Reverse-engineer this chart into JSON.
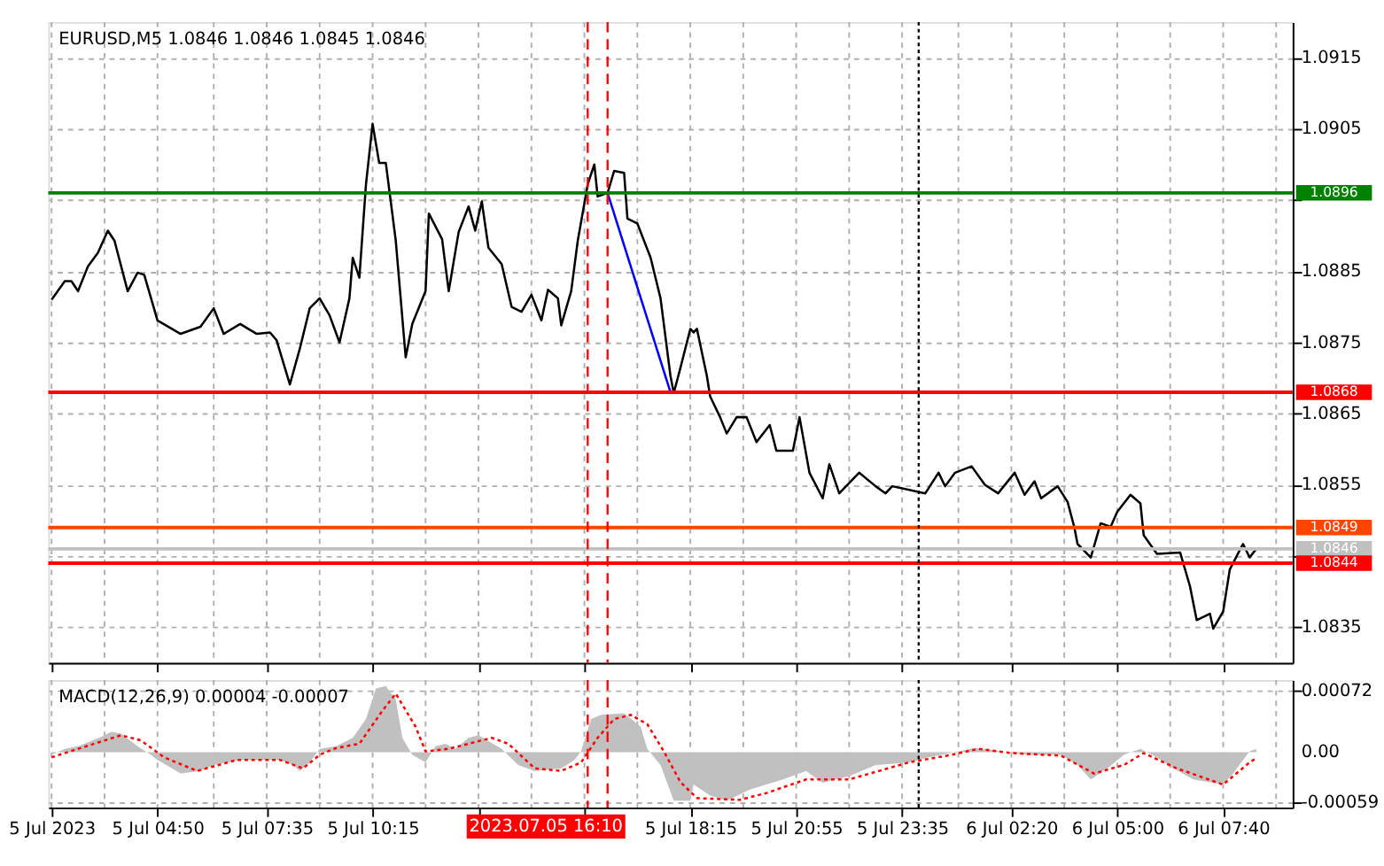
{
  "chart_data": [
    {
      "type": "line",
      "title": "EURUSD,M5  1.0846 1.0846 1.0845 1.0846",
      "tick_labels": "y",
      "grid": true,
      "xlim": [
        "2023-07-05T02:05",
        "2023-07-06T09:25"
      ],
      "xticks": [
        {
          "value": "2023-07-05T02:10",
          "label": null
        },
        {
          "value": "2023-07-05T03:30",
          "label": null
        },
        {
          "value": "2023-07-05T04:50",
          "label": null
        },
        {
          "value": "2023-07-05T06:15",
          "label": null
        },
        {
          "value": "2023-07-05T07:35",
          "label": null
        },
        {
          "value": "2023-07-05T08:55",
          "label": null
        },
        {
          "value": "2023-07-05T10:15",
          "label": null
        },
        {
          "value": "2023-07-05T11:35",
          "label": null
        },
        {
          "value": "2023-07-05T12:55",
          "label": null
        },
        {
          "value": "2023-07-05T14:15",
          "label": null
        },
        {
          "value": "2023-07-05T15:35",
          "label": null
        },
        {
          "value": "2023-07-05T16:55",
          "label": null
        },
        {
          "value": "2023-07-05T18:15",
          "label": null
        },
        {
          "value": "2023-07-05T19:35",
          "label": null
        },
        {
          "value": "2023-07-05T20:55",
          "label": null
        },
        {
          "value": "2023-07-05T22:15",
          "label": null
        },
        {
          "value": "2023-07-05T23:35",
          "label": null
        },
        {
          "value": "2023-07-06T01:00",
          "label": null
        },
        {
          "value": "2023-07-06T02:20",
          "label": null
        },
        {
          "value": "2023-07-06T03:40",
          "label": null
        },
        {
          "value": "2023-07-06T05:00",
          "label": null
        },
        {
          "value": "2023-07-06T06:20",
          "label": null
        },
        {
          "value": "2023-07-06T07:40",
          "label": null
        },
        {
          "value": "2023-07-06T09:00",
          "label": null
        }
      ],
      "ylim": [
        1.083,
        1.092
      ],
      "yticks": [
        1.0835,
        {
          "value": 1.0845,
          "label": null
        },
        1.0855,
        1.0865,
        1.0875,
        1.0885,
        {
          "value": 1.0895,
          "label": null
        },
        1.0905,
        1.0915
      ],
      "series": [
        {
          "color": "#000000",
          "x": [
            "2023-07-05T02:10",
            "2023-07-05T02:30",
            "2023-07-05T02:40",
            "2023-07-05T02:50",
            "2023-07-05T03:05",
            "2023-07-05T03:20",
            "2023-07-05T03:35",
            "2023-07-05T03:45",
            "2023-07-05T04:05",
            "2023-07-05T04:20",
            "2023-07-05T04:30",
            "2023-07-05T04:50",
            "2023-07-05T05:25",
            "2023-07-05T05:55",
            "2023-07-05T06:15",
            "2023-07-05T06:30",
            "2023-07-05T06:55",
            "2023-07-05T07:20",
            "2023-07-05T07:40",
            "2023-07-05T07:50",
            "2023-07-05T08:10",
            "2023-07-05T08:25",
            "2023-07-05T08:40",
            "2023-07-05T08:55",
            "2023-07-05T09:10",
            "2023-07-05T09:25",
            "2023-07-05T09:40",
            "2023-07-05T09:45",
            "2023-07-05T09:55",
            "2023-07-05T10:05",
            "2023-07-05T10:15",
            "2023-07-05T10:25",
            "2023-07-05T10:35",
            "2023-07-05T10:50",
            "2023-07-05T11:05",
            "2023-07-05T11:15",
            "2023-07-05T11:35",
            "2023-07-05T11:40",
            "2023-07-05T12:00",
            "2023-07-05T12:10",
            "2023-07-05T12:25",
            "2023-07-05T12:40",
            "2023-07-05T12:50",
            "2023-07-05T13:00",
            "2023-07-05T13:10",
            "2023-07-05T13:30",
            "2023-07-05T13:45",
            "2023-07-05T14:00",
            "2023-07-05T14:15",
            "2023-07-05T14:30",
            "2023-07-05T14:40",
            "2023-07-05T14:55",
            "2023-07-05T15:00",
            "2023-07-05T15:15",
            "2023-07-05T15:25",
            "2023-07-05T15:40",
            "2023-07-05T15:50",
            "2023-07-05T15:55",
            "2023-07-05T16:10",
            "2023-07-05T16:20",
            "2023-07-05T16:35",
            "2023-07-05T16:40",
            "2023-07-05T16:55",
            "2023-07-05T17:15",
            "2023-07-05T17:30",
            "2023-07-05T17:45",
            "2023-07-05T17:50",
            "2023-07-05T18:00",
            "2023-07-05T18:15",
            "2023-07-05T18:20",
            "2023-07-05T18:25",
            "2023-07-05T18:40",
            "2023-07-05T18:45",
            "2023-07-05T19:00",
            "2023-07-05T19:10",
            "2023-07-05T19:25",
            "2023-07-05T19:40",
            "2023-07-05T19:55",
            "2023-07-05T20:15",
            "2023-07-05T20:25",
            "2023-07-05T20:50",
            "2023-07-05T21:00",
            "2023-07-05T21:15",
            "2023-07-05T21:35",
            "2023-07-05T21:45",
            "2023-07-05T22:00",
            "2023-07-05T22:30",
            "2023-07-05T22:55",
            "2023-07-05T23:10",
            "2023-07-05T23:20",
            "2023-07-06T00:10",
            "2023-07-06T00:30",
            "2023-07-06T00:40",
            "2023-07-06T00:55",
            "2023-07-06T01:20",
            "2023-07-06T01:40",
            "2023-07-06T02:00",
            "2023-07-06T02:25",
            "2023-07-06T02:40",
            "2023-07-06T02:55",
            "2023-07-06T03:05",
            "2023-07-06T03:30",
            "2023-07-06T03:45",
            "2023-07-06T03:55",
            "2023-07-06T04:00",
            "2023-07-06T04:20",
            "2023-07-06T04:35",
            "2023-07-06T04:50",
            "2023-07-06T05:00",
            "2023-07-06T05:20",
            "2023-07-06T05:35",
            "2023-07-06T05:40",
            "2023-07-06T06:00",
            "2023-07-06T06:35",
            "2023-07-06T06:50",
            "2023-07-06T07:00",
            "2023-07-06T07:20",
            "2023-07-06T07:25",
            "2023-07-06T07:40",
            "2023-07-06T07:50",
            "2023-07-06T08:10",
            "2023-07-06T08:20",
            "2023-07-06T08:30"
          ],
          "values": [
            1.0881,
            1.08836,
            1.08836,
            1.08822,
            1.08857,
            1.08876,
            1.08907,
            1.08893,
            1.08822,
            1.08848,
            1.08845,
            1.08781,
            1.08762,
            1.08772,
            1.08798,
            1.08762,
            1.08776,
            1.08762,
            1.08764,
            1.08753,
            1.08691,
            1.08741,
            1.08798,
            1.08812,
            1.08788,
            1.0875,
            1.08812,
            1.08869,
            1.08841,
            1.08972,
            1.09057,
            1.09002,
            1.09002,
            1.08893,
            1.08729,
            1.08776,
            1.08822,
            1.08931,
            1.08895,
            1.08822,
            1.08905,
            1.08941,
            1.08907,
            1.08948,
            1.08883,
            1.0886,
            1.088,
            1.08793,
            1.08817,
            1.08781,
            1.08824,
            1.08812,
            1.08774,
            1.08822,
            1.08893,
            1.08972,
            1.09,
            1.08955,
            1.0896,
            1.08991,
            1.08988,
            1.08924,
            1.08917,
            1.08869,
            1.08812,
            1.08703,
            1.08679,
            1.08714,
            1.08769,
            1.08764,
            1.08769,
            1.08703,
            1.08674,
            1.08645,
            1.08622,
            1.08645,
            1.08645,
            1.0861,
            1.08634,
            1.08598,
            1.08598,
            1.08645,
            1.08567,
            1.08531,
            1.08579,
            1.08538,
            1.08567,
            1.08548,
            1.08538,
            1.08548,
            1.08538,
            1.08567,
            1.08548,
            1.08567,
            1.08576,
            1.0855,
            1.08538,
            1.08567,
            1.08536,
            1.08555,
            1.08531,
            1.08548,
            1.08526,
            1.08491,
            1.08467,
            1.08448,
            1.08496,
            1.08491,
            1.08512,
            1.08536,
            1.08524,
            1.08479,
            1.08453,
            1.08455,
            1.08407,
            1.0836,
            1.08369,
            1.08348,
            1.08372,
            1.08431,
            1.08467,
            1.08448,
            1.0846
          ]
        },
        {
          "color": "#0000ff",
          "x": [
            "2023-07-05T16:10",
            "2023-07-05T17:45"
          ],
          "values": [
            1.0896,
            1.0868
          ]
        }
      ],
      "ref_lines": [
        {
          "axis": "y",
          "value": 1.0896,
          "label": "1.0896",
          "color": "#008000"
        },
        {
          "axis": "y",
          "value": 1.0868,
          "label": "1.0868",
          "color": "#ff0000"
        },
        {
          "axis": "y",
          "value": 1.0849,
          "label": "1.0849",
          "color": "#ff4500"
        },
        {
          "axis": "y",
          "value": 1.0846,
          "label": "1.0846",
          "color": "#c0c0c0"
        },
        {
          "axis": "y",
          "value": 1.0844,
          "label": "1.0844",
          "color": "#ff0000"
        },
        {
          "axis": "x",
          "value": "2023-07-05T15:40",
          "label": null,
          "color": "#ff0000",
          "line_style": "dashed"
        },
        {
          "axis": "x",
          "value": "2023-07-05T16:10",
          "label": null,
          "color": "#ff0000",
          "line_style": "dashed"
        },
        {
          "axis": "x",
          "value": "2023-07-06T00:00",
          "label": null,
          "color": "#000000",
          "line_style": "dotted"
        }
      ]
    },
    {
      "type": "line",
      "title": "MACD(12,26,9) 0.00004 -0.00007",
      "grid": true,
      "xlim": [
        "2023-07-05T02:05",
        "2023-07-06T09:25"
      ],
      "xticks": [
        {
          "value": "2023-07-05T02:10",
          "label": "5 Jul 2023"
        },
        {
          "value": "2023-07-05T03:30",
          "label": null
        },
        {
          "value": "2023-07-05T04:50",
          "label": "5 Jul 04:50"
        },
        {
          "value": "2023-07-05T06:15",
          "label": null
        },
        {
          "value": "2023-07-05T07:35",
          "label": "5 Jul 07:35"
        },
        {
          "value": "2023-07-05T08:55",
          "label": null
        },
        {
          "value": "2023-07-05T10:15",
          "label": "5 Jul 10:15"
        },
        {
          "value": "2023-07-05T11:35",
          "label": null
        },
        {
          "value": "2023-07-05T12:55",
          "label": null
        },
        {
          "value": "2023-07-05T14:15",
          "label": null
        },
        {
          "value": "2023-07-05T15:35",
          "label": null
        },
        {
          "value": "2023-07-05T16:55",
          "label": null
        },
        {
          "value": "2023-07-05T18:15",
          "label": "5 Jul 18:15"
        },
        {
          "value": "2023-07-05T19:35",
          "label": null
        },
        {
          "value": "2023-07-05T20:55",
          "label": "5 Jul 20:55"
        },
        {
          "value": "2023-07-05T22:15",
          "label": null
        },
        {
          "value": "2023-07-05T23:35",
          "label": "5 Jul 23:35"
        },
        {
          "value": "2023-07-06T01:00",
          "label": null
        },
        {
          "value": "2023-07-06T02:20",
          "label": "6 Jul 02:20"
        },
        {
          "value": "2023-07-06T03:40",
          "label": null
        },
        {
          "value": "2023-07-06T05:00",
          "label": "6 Jul 05:00"
        },
        {
          "value": "2023-07-06T06:20",
          "label": null
        },
        {
          "value": "2023-07-06T07:40",
          "label": "6 Jul 07:40"
        },
        {
          "value": "2023-07-06T09:00",
          "label": null
        }
      ],
      "ylim": [
        -0.00065,
        0.00085
      ],
      "yticks": [
        -0.00059,
        {
          "value": 0,
          "label": "0.00"
        },
        0.00072
      ],
      "series": [
        {
          "type": "area",
          "color": "#c0c0c0",
          "x": [
            "2023-07-05T02:10",
            "2023-07-05T02:30",
            "2023-07-05T02:50",
            "2023-07-05T03:25",
            "2023-07-05T03:40",
            "2023-07-05T03:55",
            "2023-07-05T04:20",
            "2023-07-05T04:40",
            "2023-07-05T04:50",
            "2023-07-05T05:25",
            "2023-07-05T05:55",
            "2023-07-05T06:15",
            "2023-07-05T06:55",
            "2023-07-05T07:55",
            "2023-07-05T08:15",
            "2023-07-05T08:25",
            "2023-07-05T08:40",
            "2023-07-05T08:55",
            "2023-07-05T09:20",
            "2023-07-05T09:45",
            "2023-07-05T10:05",
            "2023-07-05T10:20",
            "2023-07-05T10:35",
            "2023-07-05T10:50",
            "2023-07-05T11:00",
            "2023-07-05T11:15",
            "2023-07-05T11:35",
            "2023-07-05T11:50",
            "2023-07-05T12:05",
            "2023-07-05T12:20",
            "2023-07-05T12:40",
            "2023-07-05T12:55",
            "2023-07-05T13:30",
            "2023-07-05T13:55",
            "2023-07-05T14:20",
            "2023-07-05T15:00",
            "2023-07-05T15:20",
            "2023-07-05T15:30",
            "2023-07-05T15:45",
            "2023-07-05T16:00",
            "2023-07-05T16:35",
            "2023-07-05T17:00",
            "2023-07-05T17:10",
            "2023-07-05T17:30",
            "2023-07-05T17:50",
            "2023-07-05T18:15",
            "2023-07-05T18:20",
            "2023-07-05T18:45",
            "2023-07-05T19:10",
            "2023-07-05T19:45",
            "2023-07-05T20:35",
            "2023-07-05T21:10",
            "2023-07-05T21:35",
            "2023-07-05T22:15",
            "2023-07-05T22:55",
            "2023-07-05T23:45",
            "2023-07-06T00:15",
            "2023-07-06T01:00",
            "2023-07-06T01:25",
            "2023-07-06T01:50",
            "2023-07-06T02:20",
            "2023-07-06T02:45",
            "2023-07-06T03:35",
            "2023-07-06T04:00",
            "2023-07-06T04:20",
            "2023-07-06T04:45",
            "2023-07-06T05:10",
            "2023-07-06T05:35",
            "2023-07-06T06:00",
            "2023-07-06T06:25",
            "2023-07-06T06:55",
            "2023-07-06T07:40",
            "2023-07-06T07:55",
            "2023-07-06T08:20",
            "2023-07-06T08:30"
          ],
          "values": [
            -3e-05,
            4e-05,
            7e-05,
            0.00018,
            0.00024,
            0.00022,
            7e-05,
            -3e-05,
            -9e-05,
            -0.00025,
            -0.00022,
            -0.00015,
            -9e-05,
            -9e-05,
            -0.00015,
            -0.00022,
            -0.00012,
            4e-05,
            7e-05,
            0.00017,
            0.00039,
            0.00075,
            0.00078,
            0.00062,
            0.00017,
            -3e-05,
            -0.00012,
            7e-05,
            0.0001,
            4e-05,
            0.00017,
            0.0002,
            4e-05,
            -0.00015,
            -0.00022,
            -0.00019,
            -9e-05,
            1e-05,
            0.00039,
            0.00044,
            0.00046,
            0.0003,
            4e-05,
            -0.00015,
            -0.00057,
            -0.00057,
            -0.00038,
            -0.00051,
            -0.00057,
            -0.00044,
            -0.00032,
            -0.00022,
            -0.00036,
            -0.00028,
            -0.00015,
            -0.00012,
            -6e-05,
            1e-05,
            5e-05,
            3e-05,
            -1e-05,
            -3e-05,
            -3e-05,
            -0.00015,
            -0.00032,
            -0.00019,
            -3e-05,
            4e-05,
            -6e-05,
            -0.00019,
            -0.00032,
            -0.00038,
            -0.00025,
            1e-05,
            4e-05
          ]
        },
        {
          "color": "#ff0000",
          "line_style": "dotted",
          "x": [
            "2023-07-05T02:10",
            "2023-07-05T02:50",
            "2023-07-05T03:55",
            "2023-07-05T04:25",
            "2023-07-05T05:00",
            "2023-07-05T05:50",
            "2023-07-05T06:50",
            "2023-07-05T07:55",
            "2023-07-05T08:30",
            "2023-07-05T08:55",
            "2023-07-05T09:20",
            "2023-07-05T09:55",
            "2023-07-05T10:30",
            "2023-07-05T10:50",
            "2023-07-05T11:20",
            "2023-07-05T11:35",
            "2023-07-05T12:10",
            "2023-07-05T13:15",
            "2023-07-05T13:40",
            "2023-07-05T14:20",
            "2023-07-05T15:00",
            "2023-07-05T15:30",
            "2023-07-05T15:55",
            "2023-07-05T16:20",
            "2023-07-05T16:45",
            "2023-07-05T17:10",
            "2023-07-05T17:35",
            "2023-07-05T18:00",
            "2023-07-05T18:25",
            "2023-07-05T19:30",
            "2023-07-05T20:10",
            "2023-07-05T21:10",
            "2023-07-05T22:15",
            "2023-07-05T23:45",
            "2023-07-06T00:50",
            "2023-07-06T01:30",
            "2023-07-06T02:20",
            "2023-07-06T03:35",
            "2023-07-06T04:25",
            "2023-07-06T05:10",
            "2023-07-06T05:40",
            "2023-07-06T06:30",
            "2023-07-06T07:40",
            "2023-07-06T08:20",
            "2023-07-06T08:30"
          ],
          "values": [
            -6e-05,
            4e-05,
            0.0002,
            0.00014,
            -6e-05,
            -0.00022,
            -9e-05,
            -9e-05,
            -0.00019,
            -3e-05,
            5e-05,
            0.0001,
            0.00049,
            0.00069,
            0.0003,
            1e-05,
            4e-05,
            0.00017,
            0.0001,
            -0.00019,
            -0.00022,
            -0.00012,
            0.00017,
            0.00039,
            0.00044,
            0.00033,
            1e-05,
            -0.00035,
            -0.00054,
            -0.00056,
            -0.00048,
            -0.00032,
            -0.00032,
            -0.00012,
            -3e-05,
            4e-05,
            -1e-05,
            -4e-05,
            -0.00025,
            -0.00015,
            -1e-05,
            -0.00019,
            -0.00038,
            -0.00012,
            -7e-05
          ]
        }
      ],
      "ref_lines": [
        {
          "axis": "x",
          "value": "2023-07-05T15:40",
          "label": null,
          "color": "#ff0000",
          "line_style": "dashed"
        },
        {
          "axis": "x",
          "value": "2023-07-05T16:10",
          "label": null,
          "color": "#ff0000",
          "line_style": "dashed"
        },
        {
          "axis": "x",
          "value": "2023-07-06T00:00",
          "label": null,
          "color": "#000000",
          "line_style": "dotted"
        }
      ],
      "annotations": [
        "2023.07.05 16:10"
      ]
    }
  ]
}
